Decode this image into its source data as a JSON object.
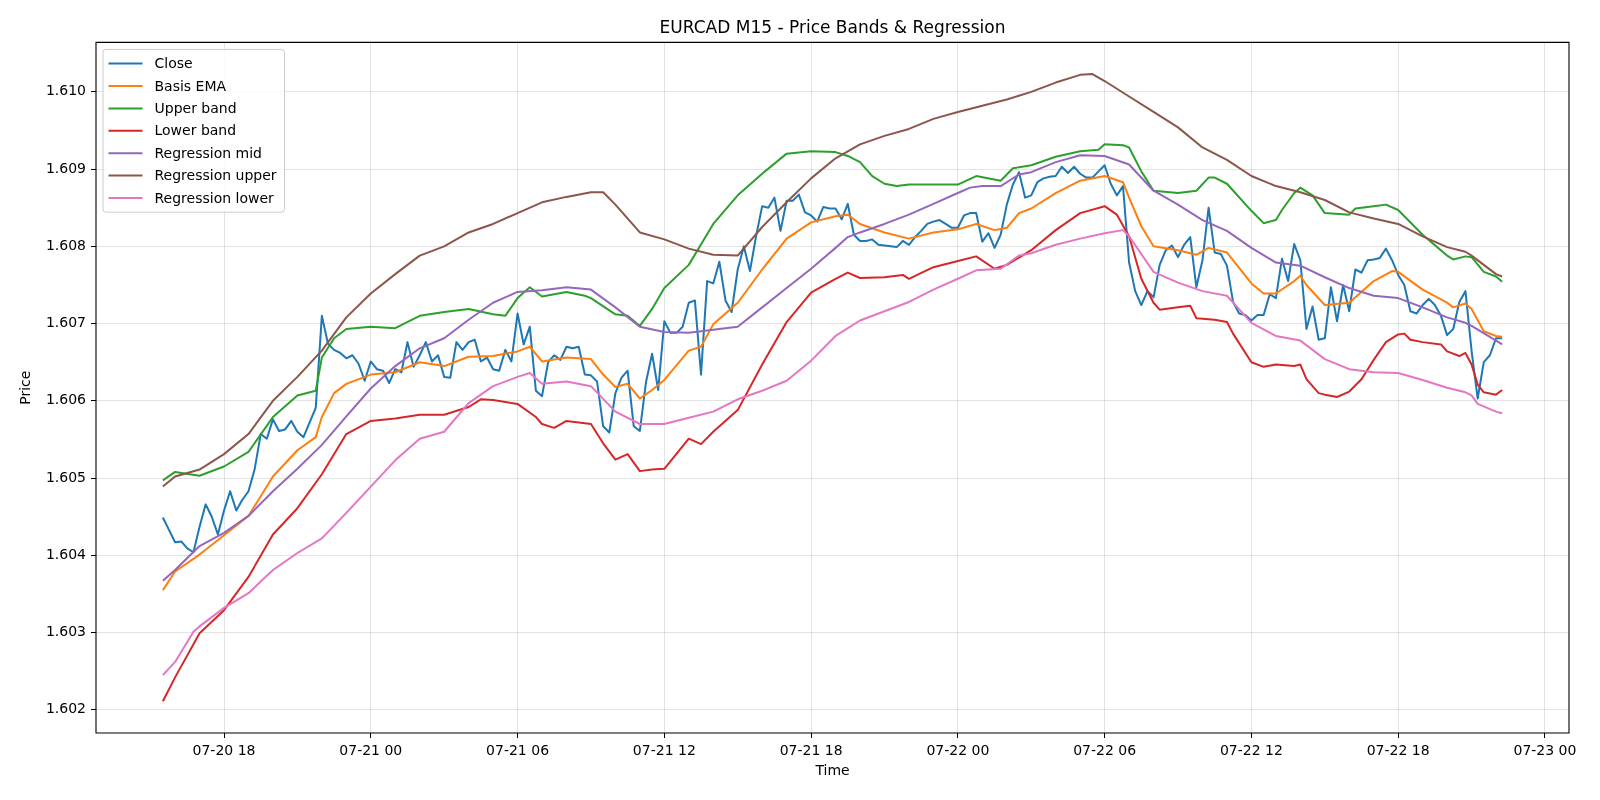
{
  "chart_data": {
    "type": "line",
    "title": "EURCAD M15 - Price Bands & Regression",
    "xlabel": "Time",
    "ylabel": "Price",
    "xlim": [
      "--07-20T12:46",
      "--07-23T00:59"
    ],
    "ylim": [
      1.6017,
      1.61064
    ],
    "xticks": [
      {
        "value": "--07-20T18:00",
        "label": "07-20 18"
      },
      {
        "value": "--07-21T00:00",
        "label": "07-21 00"
      },
      {
        "value": "--07-21T06:00",
        "label": "07-21 06"
      },
      {
        "value": "--07-21T12:00",
        "label": "07-21 12"
      },
      {
        "value": "--07-21T18:00",
        "label": "07-21 18"
      },
      {
        "value": "--07-22T00:00",
        "label": "07-22 00"
      },
      {
        "value": "--07-22T06:00",
        "label": "07-22 06"
      },
      {
        "value": "--07-22T12:00",
        "label": "07-22 12"
      },
      {
        "value": "--07-22T18:00",
        "label": "07-22 18"
      },
      {
        "value": "--07-23T00:00",
        "label": "07-23 00"
      }
    ],
    "yticks": [
      1.602,
      1.603,
      1.604,
      1.605,
      1.606,
      1.607,
      1.608,
      1.609,
      {
        "value": 1.61,
        "label": "1.610"
      }
    ],
    "grid": true,
    "legend": "top left",
    "series": [
      {
        "name": "Close",
        "color": "#1f77b4",
        "x": [
          "--07-20T15:30",
          "--07-20T15:45",
          "--07-20T16:00",
          "--07-20T16:15",
          "--07-20T16:30",
          "--07-20T16:45",
          "--07-20T17:00",
          "--07-20T17:15",
          "--07-20T17:30",
          "--07-20T17:45",
          "--07-20T18:00",
          "--07-20T18:15",
          "--07-20T18:30",
          "--07-20T18:45",
          "--07-20T19:00",
          "--07-20T19:15",
          "--07-20T19:30",
          "--07-20T19:45",
          "--07-20T20:00",
          "--07-20T20:15",
          "--07-20T20:30",
          "--07-20T20:45",
          "--07-20T21:00",
          "--07-20T21:15",
          "--07-20T21:30",
          "--07-20T21:45",
          "--07-20T22:00",
          "--07-20T22:15",
          "--07-20T22:30",
          "--07-20T22:45",
          "--07-20T23:00",
          "--07-20T23:15",
          "--07-20T23:30",
          "--07-20T23:45",
          "--07-21T00:00",
          "--07-21T00:15",
          "--07-21T00:30",
          "--07-21T00:45",
          "--07-21T01:00",
          "--07-21T01:15",
          "--07-21T01:30",
          "--07-21T01:45",
          "--07-21T02:00",
          "--07-21T02:15",
          "--07-21T02:30",
          "--07-21T02:45",
          "--07-21T03:00",
          "--07-21T03:15",
          "--07-21T03:30",
          "--07-21T03:45",
          "--07-21T04:00",
          "--07-21T04:15",
          "--07-21T04:30",
          "--07-21T04:45",
          "--07-21T05:00",
          "--07-21T05:15",
          "--07-21T05:30",
          "--07-21T05:45",
          "--07-21T06:00",
          "--07-21T06:15",
          "--07-21T06:30",
          "--07-21T06:45",
          "--07-21T07:00",
          "--07-21T07:15",
          "--07-21T07:30",
          "--07-21T07:45",
          "--07-21T08:00",
          "--07-21T08:15",
          "--07-21T08:30",
          "--07-21T08:45",
          "--07-21T09:00",
          "--07-21T09:15",
          "--07-21T09:30",
          "--07-21T09:45",
          "--07-21T10:00",
          "--07-21T10:15",
          "--07-21T10:30",
          "--07-21T10:45",
          "--07-21T11:00",
          "--07-21T11:15",
          "--07-21T11:30",
          "--07-21T11:45",
          "--07-21T12:00",
          "--07-21T12:15",
          "--07-21T12:30",
          "--07-21T12:45",
          "--07-21T13:00",
          "--07-21T13:15",
          "--07-21T13:30",
          "--07-21T13:45",
          "--07-21T14:00",
          "--07-21T14:15",
          "--07-21T14:30",
          "--07-21T14:45",
          "--07-21T15:00",
          "--07-21T15:15",
          "--07-21T15:30",
          "--07-21T15:45",
          "--07-21T16:00",
          "--07-21T16:15",
          "--07-21T16:30",
          "--07-21T16:45",
          "--07-21T17:00",
          "--07-21T17:15",
          "--07-21T17:30",
          "--07-21T17:45",
          "--07-21T18:00",
          "--07-21T18:15",
          "--07-21T18:30",
          "--07-21T18:45",
          "--07-21T19:00",
          "--07-21T19:15",
          "--07-21T19:30",
          "--07-21T19:45",
          "--07-21T20:00",
          "--07-21T20:15",
          "--07-21T20:30",
          "--07-21T20:45",
          "--07-21T21:00",
          "--07-21T21:15",
          "--07-21T21:30",
          "--07-21T21:45",
          "--07-21T22:00",
          "--07-21T22:15",
          "--07-21T22:30",
          "--07-21T22:45",
          "--07-21T23:00",
          "--07-21T23:15",
          "--07-21T23:30",
          "--07-21T23:45",
          "--07-22T00:00",
          "--07-22T00:15",
          "--07-22T00:30",
          "--07-22T00:45",
          "--07-22T01:00",
          "--07-22T01:15",
          "--07-22T01:30",
          "--07-22T01:45",
          "--07-22T02:00",
          "--07-22T02:15",
          "--07-22T02:30",
          "--07-22T02:45",
          "--07-22T03:00",
          "--07-22T03:15",
          "--07-22T03:30",
          "--07-22T03:45",
          "--07-22T04:00",
          "--07-22T04:15",
          "--07-22T04:30",
          "--07-22T04:45",
          "--07-22T05:00",
          "--07-22T05:15",
          "--07-22T05:30",
          "--07-22T05:45",
          "--07-22T06:00",
          "--07-22T06:15",
          "--07-22T06:30",
          "--07-22T06:45",
          "--07-22T07:00",
          "--07-22T07:15",
          "--07-22T07:30",
          "--07-22T07:45",
          "--07-22T08:00",
          "--07-22T08:15",
          "--07-22T08:30",
          "--07-22T08:45",
          "--07-22T09:00",
          "--07-22T09:15",
          "--07-22T09:30",
          "--07-22T09:45",
          "--07-22T10:00",
          "--07-22T10:15",
          "--07-22T10:30",
          "--07-22T10:45",
          "--07-22T11:00",
          "--07-22T11:15",
          "--07-22T11:30",
          "--07-22T11:45",
          "--07-22T12:00",
          "--07-22T12:15",
          "--07-22T12:30",
          "--07-22T12:45",
          "--07-22T13:00",
          "--07-22T13:15",
          "--07-22T13:30",
          "--07-22T13:45",
          "--07-22T14:00",
          "--07-22T14:15",
          "--07-22T14:30",
          "--07-22T14:45",
          "--07-22T15:00",
          "--07-22T15:15",
          "--07-22T15:30",
          "--07-22T15:45",
          "--07-22T16:00",
          "--07-22T16:15",
          "--07-22T16:30",
          "--07-22T16:45",
          "--07-22T17:00",
          "--07-22T17:15",
          "--07-22T17:30",
          "--07-22T17:45",
          "--07-22T18:00",
          "--07-22T18:15",
          "--07-22T18:30",
          "--07-22T18:45",
          "--07-22T19:00",
          "--07-22T19:15",
          "--07-22T19:30",
          "--07-22T19:45",
          "--07-22T20:00",
          "--07-22T20:15",
          "--07-22T20:30",
          "--07-22T20:45",
          "--07-22T21:00",
          "--07-22T21:15",
          "--07-22T21:30",
          "--07-22T21:45",
          "--07-22T22:00",
          "--07-22T22:15"
        ],
        "values": [
          1.60449,
          1.60433,
          1.60417,
          1.60418,
          1.60409,
          1.60404,
          1.60437,
          1.60466,
          1.6045,
          1.60427,
          1.60458,
          1.60483,
          1.60458,
          1.60472,
          1.60483,
          1.60511,
          1.60557,
          1.60551,
          1.60576,
          1.60561,
          1.60563,
          1.60574,
          1.6056,
          1.60553,
          1.60572,
          1.60591,
          1.6071,
          1.60674,
          1.60666,
          1.60662,
          1.60655,
          1.60659,
          1.60648,
          1.60626,
          1.60651,
          1.60641,
          1.60639,
          1.60623,
          1.60641,
          1.60637,
          1.60676,
          1.60644,
          1.60659,
          1.60676,
          1.60651,
          1.60659,
          1.60631,
          1.6063,
          1.60676,
          1.60666,
          1.60676,
          1.60679,
          1.60651,
          1.60656,
          1.60641,
          1.60639,
          1.60666,
          1.60651,
          1.60713,
          1.60673,
          1.60696,
          1.60613,
          1.60606,
          1.6065,
          1.60659,
          1.60653,
          1.6067,
          1.60668,
          1.6067,
          1.60634,
          1.60633,
          1.60625,
          1.60567,
          1.60559,
          1.6061,
          1.6063,
          1.60639,
          1.60567,
          1.60561,
          1.60624,
          1.60661,
          1.60614,
          1.60703,
          1.60688,
          1.60688,
          1.60696,
          1.60727,
          1.6073,
          1.60634,
          1.60755,
          1.60752,
          1.6078,
          1.6073,
          1.60715,
          1.6077,
          1.608,
          1.60768,
          1.60813,
          1.60852,
          1.6085,
          1.60863,
          1.6082,
          1.60859,
          1.60859,
          1.60867,
          1.60844,
          1.6084,
          1.60832,
          1.60851,
          1.60849,
          1.60849,
          1.60835,
          1.60855,
          1.60815,
          1.60807,
          1.60807,
          1.60809,
          1.60802,
          1.60801,
          1.608,
          1.60799,
          1.60807,
          1.60802,
          1.60812,
          1.6082,
          1.60829,
          1.60832,
          1.60834,
          1.60829,
          1.60824,
          1.60824,
          1.6084,
          1.60843,
          1.60843,
          1.60806,
          1.60817,
          1.60798,
          1.60815,
          1.60854,
          1.6088,
          1.60896,
          1.60863,
          1.60866,
          1.60883,
          1.60888,
          1.6089,
          1.60891,
          1.60903,
          1.60895,
          1.60903,
          1.60894,
          1.60889,
          1.60889,
          1.60897,
          1.60905,
          1.60881,
          1.60866,
          1.60878,
          1.60779,
          1.60742,
          1.60724,
          1.60742,
          1.60734,
          1.60776,
          1.60795,
          1.60801,
          1.60786,
          1.60802,
          1.60812,
          1.60747,
          1.60782,
          1.6085,
          1.60792,
          1.6079,
          1.60775,
          1.60728,
          1.60713,
          1.60711,
          1.60704,
          1.60711,
          1.60711,
          1.60738,
          1.60733,
          1.60784,
          1.60755,
          1.60803,
          1.60782,
          1.60693,
          1.60722,
          1.60679,
          1.60681,
          1.60747,
          1.60703,
          1.6075,
          1.60716,
          1.6077,
          1.60766,
          1.60782,
          1.60783,
          1.60785,
          1.60797,
          1.60782,
          1.60763,
          1.6075,
          1.60716,
          1.60713,
          1.60724,
          1.60732,
          1.60724,
          1.6071,
          1.60685,
          1.60693,
          1.60728,
          1.60742,
          1.60665,
          1.60603,
          1.6065,
          1.60659,
          1.60681,
          1.60681
        ]
      },
      {
        "name": "Basis EMA",
        "color": "#ff7f0e",
        "x": [
          "--07-20T15:30",
          "--07-20T16:00",
          "--07-20T17:00",
          "--07-20T18:00",
          "--07-20T19:00",
          "--07-20T20:00",
          "--07-20T21:00",
          "--07-20T21:45",
          "--07-20T22:00",
          "--07-20T22:30",
          "--07-20T23:00",
          "--07-21T00:00",
          "--07-21T01:00",
          "--07-21T02:00",
          "--07-21T03:00",
          "--07-21T04:00",
          "--07-21T05:00",
          "--07-21T06:00",
          "--07-21T06:30",
          "--07-21T07:00",
          "--07-21T08:00",
          "--07-21T09:00",
          "--07-21T09:30",
          "--07-21T10:00",
          "--07-21T10:30",
          "--07-21T11:00",
          "--07-21T11:30",
          "--07-21T12:00",
          "--07-21T13:00",
          "--07-21T13:30",
          "--07-21T14:00",
          "--07-21T15:00",
          "--07-21T16:00",
          "--07-21T17:00",
          "--07-21T18:00",
          "--07-21T19:00",
          "--07-21T19:30",
          "--07-21T20:00",
          "--07-21T21:00",
          "--07-21T22:00",
          "--07-21T23:00",
          "--07-22T00:00",
          "--07-22T00:45",
          "--07-22T01:30",
          "--07-22T02:00",
          "--07-22T02:30",
          "--07-22T03:00",
          "--07-22T04:00",
          "--07-22T05:00",
          "--07-22T06:00",
          "--07-22T06:45",
          "--07-22T07:00",
          "--07-22T07:30",
          "--07-22T08:00",
          "--07-22T09:00",
          "--07-22T09:45",
          "--07-22T10:15",
          "--07-22T11:00",
          "--07-22T12:00",
          "--07-22T12:30",
          "--07-22T13:00",
          "--07-22T13:45",
          "--07-22T14:00",
          "--07-22T14:15",
          "--07-22T15:00",
          "--07-22T16:00",
          "--07-22T17:00",
          "--07-22T17:45",
          "--07-22T18:00",
          "--07-22T19:00",
          "--07-22T20:00",
          "--07-22T20:15",
          "--07-22T20:45",
          "--07-22T21:00",
          "--07-22T21:30",
          "--07-22T22:00",
          "--07-22T22:15"
        ],
        "values": [
          1.60355,
          1.60379,
          1.60401,
          1.60426,
          1.60451,
          1.60502,
          1.60536,
          1.60553,
          1.60579,
          1.6061,
          1.60622,
          1.60634,
          1.60637,
          1.6065,
          1.60645,
          1.60657,
          1.60658,
          1.60664,
          1.6067,
          1.60651,
          1.60656,
          1.60654,
          1.60634,
          1.60618,
          1.60622,
          1.60603,
          1.60614,
          1.60627,
          1.60665,
          1.6067,
          1.60699,
          1.60727,
          1.6077,
          1.6081,
          1.60831,
          1.60839,
          1.60841,
          1.60829,
          1.60818,
          1.6081,
          1.60818,
          1.60822,
          1.60829,
          1.60821,
          1.60824,
          1.60843,
          1.60849,
          1.60869,
          1.60885,
          1.60891,
          1.60883,
          1.60863,
          1.60826,
          1.608,
          1.60795,
          1.60789,
          1.60798,
          1.60792,
          1.60752,
          1.60739,
          1.60739,
          1.60755,
          1.60762,
          1.6075,
          1.60724,
          1.60727,
          1.60755,
          1.60768,
          1.60767,
          1.60744,
          1.60727,
          1.60721,
          1.60726,
          1.60719,
          1.6069,
          1.60684,
          1.60683
        ]
      },
      {
        "name": "Upper band",
        "color": "#2ca02c",
        "x": [
          "--07-20T15:30",
          "--07-20T16:00",
          "--07-20T17:00",
          "--07-20T18:00",
          "--07-20T19:00",
          "--07-20T20:00",
          "--07-20T21:00",
          "--07-20T21:45",
          "--07-20T22:00",
          "--07-20T22:30",
          "--07-20T23:00",
          "--07-21T00:00",
          "--07-21T01:00",
          "--07-21T02:00",
          "--07-21T03:00",
          "--07-21T04:00",
          "--07-21T05:00",
          "--07-21T05:30",
          "--07-21T06:00",
          "--07-21T06:30",
          "--07-21T07:00",
          "--07-21T08:00",
          "--07-21T08:45",
          "--07-21T09:00",
          "--07-21T10:00",
          "--07-21T10:30",
          "--07-21T11:00",
          "--07-21T11:30",
          "--07-21T12:00",
          "--07-21T13:00",
          "--07-21T14:00",
          "--07-21T15:00",
          "--07-21T16:00",
          "--07-21T17:00",
          "--07-21T18:00",
          "--07-21T19:00",
          "--07-21T19:30",
          "--07-21T20:00",
          "--07-21T20:30",
          "--07-21T21:00",
          "--07-21T21:30",
          "--07-21T22:00",
          "--07-21T23:00",
          "--07-22T00:00",
          "--07-22T00:45",
          "--07-22T01:45",
          "--07-22T02:15",
          "--07-22T03:00",
          "--07-22T04:00",
          "--07-22T05:00",
          "--07-22T05:45",
          "--07-22T06:00",
          "--07-22T06:45",
          "--07-22T07:00",
          "--07-22T07:30",
          "--07-22T08:00",
          "--07-22T09:00",
          "--07-22T09:45",
          "--07-22T10:15",
          "--07-22T10:30",
          "--07-22T11:00",
          "--07-22T12:00",
          "--07-22T12:30",
          "--07-22T13:00",
          "--07-22T13:15",
          "--07-22T13:45",
          "--07-22T14:00",
          "--07-22T14:30",
          "--07-22T15:00",
          "--07-22T16:00",
          "--07-22T16:15",
          "--07-22T17:00",
          "--07-22T17:30",
          "--07-22T18:00",
          "--07-22T19:00",
          "--07-22T20:00",
          "--07-22T20:15",
          "--07-22T20:45",
          "--07-22T21:00",
          "--07-22T21:30",
          "--07-22T22:00",
          "--07-22T22:15"
        ],
        "values": [
          1.60497,
          1.60508,
          1.60503,
          1.60515,
          1.60534,
          1.60579,
          1.60607,
          1.60613,
          1.60656,
          1.60681,
          1.60693,
          1.60696,
          1.60694,
          1.6071,
          1.60715,
          1.60719,
          1.60712,
          1.6071,
          1.60733,
          1.60747,
          1.60735,
          1.60741,
          1.60736,
          1.60733,
          1.60712,
          1.6071,
          1.60697,
          1.60719,
          1.60746,
          1.60776,
          1.60829,
          1.60866,
          1.60894,
          1.6092,
          1.60923,
          1.60922,
          1.60917,
          1.60909,
          1.60891,
          1.60881,
          1.60878,
          1.6088,
          1.6088,
          1.6088,
          1.60891,
          1.60885,
          1.60901,
          1.60905,
          1.60916,
          1.60923,
          1.60925,
          1.60932,
          1.60931,
          1.60928,
          1.60897,
          1.60872,
          1.60869,
          1.60872,
          1.60889,
          1.60889,
          1.60881,
          1.60846,
          1.6083,
          1.60834,
          1.60847,
          1.60869,
          1.60876,
          1.60866,
          1.60843,
          1.60841,
          1.60849,
          1.60852,
          1.60854,
          1.60847,
          1.60815,
          1.60788,
          1.60783,
          1.60787,
          1.60786,
          1.60767,
          1.60761,
          1.60754
        ]
      },
      {
        "name": "Lower band",
        "color": "#d62728",
        "x": [
          "--07-20T15:30",
          "--07-20T16:00",
          "--07-20T17:00",
          "--07-20T18:00",
          "--07-20T19:00",
          "--07-20T20:00",
          "--07-20T21:00",
          "--07-20T22:00",
          "--07-20T23:00",
          "--07-21T00:00",
          "--07-21T01:00",
          "--07-21T02:00",
          "--07-21T03:00",
          "--07-21T04:00",
          "--07-21T04:30",
          "--07-21T05:00",
          "--07-21T06:00",
          "--07-21T06:45",
          "--07-21T07:00",
          "--07-21T07:30",
          "--07-21T08:00",
          "--07-21T08:45",
          "--07-21T09:00",
          "--07-21T09:30",
          "--07-21T10:00",
          "--07-21T10:30",
          "--07-21T11:00",
          "--07-21T11:30",
          "--07-21T12:00",
          "--07-21T13:00",
          "--07-21T13:30",
          "--07-21T14:00",
          "--07-21T15:00",
          "--07-21T16:00",
          "--07-21T17:00",
          "--07-21T18:00",
          "--07-21T19:00",
          "--07-21T19:30",
          "--07-21T20:00",
          "--07-21T21:00",
          "--07-21T21:45",
          "--07-21T22:00",
          "--07-21T23:00",
          "--07-22T00:00",
          "--07-22T00:45",
          "--07-22T01:30",
          "--07-22T02:00",
          "--07-22T03:00",
          "--07-22T04:00",
          "--07-22T05:00",
          "--07-22T06:00",
          "--07-22T06:30",
          "--07-22T07:00",
          "--07-22T07:30",
          "--07-22T08:00",
          "--07-22T08:15",
          "--07-22T09:00",
          "--07-22T09:30",
          "--07-22T09:45",
          "--07-22T10:30",
          "--07-22T11:00",
          "--07-22T11:15",
          "--07-22T12:00",
          "--07-22T12:30",
          "--07-22T13:00",
          "--07-22T13:45",
          "--07-22T14:00",
          "--07-22T14:15",
          "--07-22T14:45",
          "--07-22T15:00",
          "--07-22T15:30",
          "--07-22T16:00",
          "--07-22T16:30",
          "--07-22T17:00",
          "--07-22T17:30",
          "--07-22T18:00",
          "--07-22T18:15",
          "--07-22T18:30",
          "--07-22T19:00",
          "--07-22T19:45",
          "--07-22T20:00",
          "--07-22T20:30",
          "--07-22T20:45",
          "--07-22T21:00",
          "--07-22T21:15",
          "--07-22T21:30",
          "--07-22T22:00",
          "--07-22T22:15"
        ],
        "values": [
          1.60211,
          1.60242,
          1.60299,
          1.60329,
          1.60372,
          1.60427,
          1.60461,
          1.60505,
          1.60557,
          1.60574,
          1.60577,
          1.60582,
          1.60582,
          1.60592,
          1.60602,
          1.60601,
          1.60596,
          1.60579,
          1.6057,
          1.60565,
          1.60574,
          1.60571,
          1.6057,
          1.60545,
          1.60524,
          1.60531,
          1.60509,
          1.60511,
          1.60512,
          1.60551,
          1.60544,
          1.6056,
          1.60588,
          1.60647,
          1.60702,
          1.6074,
          1.60758,
          1.60766,
          1.60759,
          1.6076,
          1.60763,
          1.60758,
          1.60773,
          1.60781,
          1.60787,
          1.60771,
          1.60776,
          1.60795,
          1.60821,
          1.60843,
          1.60852,
          1.60841,
          1.60813,
          1.60758,
          1.60727,
          1.60718,
          1.60721,
          1.60723,
          1.60707,
          1.60705,
          1.60702,
          1.60687,
          1.6065,
          1.60644,
          1.60647,
          1.60645,
          1.60647,
          1.60628,
          1.6061,
          1.60608,
          1.60605,
          1.60612,
          1.60628,
          1.60653,
          1.60676,
          1.60686,
          1.60687,
          1.60679,
          1.60676,
          1.60673,
          1.60664,
          1.60658,
          1.60662,
          1.60647,
          1.60621,
          1.60611,
          1.60608,
          1.60614
        ]
      },
      {
        "name": "Regression mid",
        "color": "#9467bd",
        "x": [
          "--07-20T15:30",
          "--07-20T16:00",
          "--07-20T17:00",
          "--07-20T18:00",
          "--07-20T19:00",
          "--07-20T20:00",
          "--07-20T21:00",
          "--07-20T22:00",
          "--07-20T23:00",
          "--07-21T00:00",
          "--07-21T01:00",
          "--07-21T02:00",
          "--07-21T03:00",
          "--07-21T04:00",
          "--07-21T05:00",
          "--07-21T06:00",
          "--07-21T07:00",
          "--07-21T08:00",
          "--07-21T09:00",
          "--07-21T10:00",
          "--07-21T11:00",
          "--07-21T12:00",
          "--07-21T13:00",
          "--07-21T14:00",
          "--07-21T15:00",
          "--07-21T16:00",
          "--07-21T17:00",
          "--07-21T18:00",
          "--07-21T19:00",
          "--07-21T19:30",
          "--07-21T20:00",
          "--07-21T21:00",
          "--07-21T22:00",
          "--07-21T23:00",
          "--07-22T00:00",
          "--07-22T00:30",
          "--07-22T01:00",
          "--07-22T01:45",
          "--07-22T02:30",
          "--07-22T03:00",
          "--07-22T04:00",
          "--07-22T05:00",
          "--07-22T06:00",
          "--07-22T07:00",
          "--07-22T08:00",
          "--07-22T09:00",
          "--07-22T10:00",
          "--07-22T11:00",
          "--07-22T12:00",
          "--07-22T13:00",
          "--07-22T14:00",
          "--07-22T15:00",
          "--07-22T16:00",
          "--07-22T17:00",
          "--07-22T18:00",
          "--07-22T19:00",
          "--07-22T20:00",
          "--07-22T20:45",
          "--07-22T21:00",
          "--07-22T22:00",
          "--07-22T22:15"
        ],
        "values": [
          1.60367,
          1.60381,
          1.60412,
          1.60429,
          1.60451,
          1.60483,
          1.60512,
          1.60543,
          1.6058,
          1.60616,
          1.60645,
          1.60668,
          1.60681,
          1.60705,
          1.60727,
          1.60741,
          1.60743,
          1.60747,
          1.60744,
          1.60721,
          1.60696,
          1.60689,
          1.60688,
          1.60692,
          1.60696,
          1.60721,
          1.60746,
          1.60771,
          1.60798,
          1.60812,
          1.60818,
          1.60829,
          1.60841,
          1.60855,
          1.60869,
          1.60876,
          1.60878,
          1.60878,
          1.60893,
          1.60896,
          1.60909,
          1.60918,
          1.60917,
          1.60906,
          1.60872,
          1.60854,
          1.60834,
          1.6082,
          1.60798,
          1.60779,
          1.60775,
          1.6076,
          1.60746,
          1.60736,
          1.60733,
          1.60721,
          1.60708,
          1.60701,
          1.60697,
          1.60678,
          1.60673
        ]
      },
      {
        "name": "Regression upper",
        "color": "#8c564b",
        "x": [
          "--07-20T15:30",
          "--07-20T16:00",
          "--07-20T17:00",
          "--07-20T18:00",
          "--07-20T19:00",
          "--07-20T20:00",
          "--07-20T21:00",
          "--07-20T22:00",
          "--07-20T23:00",
          "--07-21T00:00",
          "--07-21T01:00",
          "--07-21T02:00",
          "--07-21T03:00",
          "--07-21T04:00",
          "--07-21T05:00",
          "--07-21T06:00",
          "--07-21T07:00",
          "--07-21T08:00",
          "--07-21T09:00",
          "--07-21T09:30",
          "--07-21T10:00",
          "--07-21T11:00",
          "--07-21T12:00",
          "--07-21T13:00",
          "--07-21T14:00",
          "--07-21T15:00",
          "--07-21T16:00",
          "--07-21T17:00",
          "--07-21T18:00",
          "--07-21T19:00",
          "--07-21T20:00",
          "--07-21T21:00",
          "--07-21T22:00",
          "--07-21T23:00",
          "--07-22T00:00",
          "--07-22T01:00",
          "--07-22T02:00",
          "--07-22T03:00",
          "--07-22T04:00",
          "--07-22T05:00",
          "--07-22T05:30",
          "--07-22T06:00",
          "--07-22T07:00",
          "--07-22T08:00",
          "--07-22T09:00",
          "--07-22T10:00",
          "--07-22T11:00",
          "--07-22T12:00",
          "--07-22T13:00",
          "--07-22T14:00",
          "--07-22T15:00",
          "--07-22T16:00",
          "--07-22T17:00",
          "--07-22T18:00",
          "--07-22T19:00",
          "--07-22T20:00",
          "--07-22T20:45",
          "--07-22T21:00",
          "--07-22T22:00",
          "--07-22T22:15"
        ],
        "values": [
          1.60489,
          1.60502,
          1.60511,
          1.60531,
          1.60557,
          1.606,
          1.60631,
          1.60665,
          1.60708,
          1.60739,
          1.60764,
          1.60788,
          1.608,
          1.60818,
          1.60829,
          1.60843,
          1.60857,
          1.60864,
          1.6087,
          1.6087,
          1.60854,
          1.60818,
          1.60809,
          1.60797,
          1.60789,
          1.60788,
          1.60825,
          1.60857,
          1.60888,
          1.60914,
          1.60932,
          1.60943,
          1.60952,
          1.60965,
          1.60974,
          1.60982,
          1.6099,
          1.61,
          1.61012,
          1.61022,
          1.61023,
          1.61014,
          1.60994,
          1.60974,
          1.60954,
          1.60928,
          1.60912,
          1.60891,
          1.60878,
          1.6087,
          1.6086,
          1.60844,
          1.60836,
          1.60829,
          1.60813,
          1.60799,
          1.60793,
          1.60788,
          1.60764,
          1.60761
        ]
      },
      {
        "name": "Regression lower",
        "color": "#e377c2",
        "x": [
          "--07-20T15:30",
          "--07-20T16:00",
          "--07-20T16:45",
          "--07-20T17:00",
          "--07-20T18:00",
          "--07-20T19:00",
          "--07-20T20:00",
          "--07-20T21:00",
          "--07-20T22:00",
          "--07-20T23:00",
          "--07-21T00:00",
          "--07-21T01:00",
          "--07-21T02:00",
          "--07-21T03:00",
          "--07-21T04:00",
          "--07-21T05:00",
          "--07-21T06:00",
          "--07-21T06:30",
          "--07-21T07:00",
          "--07-21T08:00",
          "--07-21T09:00",
          "--07-21T10:00",
          "--07-21T11:00",
          "--07-21T12:00",
          "--07-21T13:00",
          "--07-21T14:00",
          "--07-21T15:00",
          "--07-21T16:00",
          "--07-21T17:00",
          "--07-21T18:00",
          "--07-21T19:00",
          "--07-21T20:00",
          "--07-21T21:00",
          "--07-21T22:00",
          "--07-21T23:00",
          "--07-22T00:00",
          "--07-22T00:45",
          "--07-22T01:45",
          "--07-22T02:30",
          "--07-22T03:00",
          "--07-22T04:00",
          "--07-22T05:00",
          "--07-22T06:00",
          "--07-22T06:45",
          "--07-22T07:00",
          "--07-22T08:00",
          "--07-22T09:00",
          "--07-22T10:00",
          "--07-22T11:00",
          "--07-22T12:00",
          "--07-22T13:00",
          "--07-22T14:00",
          "--07-22T15:00",
          "--07-22T16:00",
          "--07-22T17:00",
          "--07-22T18:00",
          "--07-22T19:00",
          "--07-22T20:00",
          "--07-22T20:45",
          "--07-22T21:00",
          "--07-22T21:15",
          "--07-22T22:00",
          "--07-22T22:15"
        ],
        "values": [
          1.60245,
          1.60262,
          1.60301,
          1.60308,
          1.60332,
          1.60351,
          1.60381,
          1.60403,
          1.60422,
          1.60455,
          1.60489,
          1.60523,
          1.60551,
          1.6056,
          1.60597,
          1.60619,
          1.60631,
          1.60636,
          1.60622,
          1.60625,
          1.60619,
          1.60586,
          1.6057,
          1.6057,
          1.60578,
          1.60586,
          1.60602,
          1.60613,
          1.60626,
          1.60652,
          1.60684,
          1.60704,
          1.60716,
          1.60728,
          1.60744,
          1.60758,
          1.60769,
          1.60771,
          1.60788,
          1.60791,
          1.60802,
          1.6081,
          1.60817,
          1.60821,
          1.60813,
          1.60767,
          1.60753,
          1.60742,
          1.60736,
          1.60701,
          1.60684,
          1.60678,
          1.60654,
          1.60641,
          1.60637,
          1.60636,
          1.60627,
          1.60617,
          1.60611,
          1.60607,
          1.60596,
          1.60586,
          1.60584
        ]
      }
    ]
  }
}
